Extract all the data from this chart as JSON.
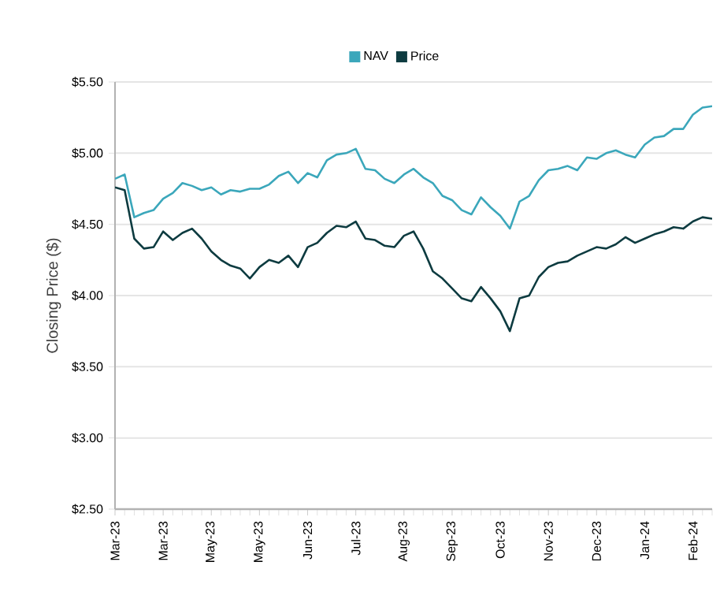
{
  "chart_data": {
    "type": "line",
    "ylabel": "Closing Price ($)",
    "categories": [
      "Mar-23",
      null,
      null,
      null,
      null,
      "Mar-23",
      null,
      null,
      null,
      null,
      "May-23",
      null,
      null,
      null,
      null,
      "May-23",
      null,
      null,
      null,
      null,
      "Jun-23",
      null,
      null,
      null,
      null,
      "Jul-23",
      null,
      null,
      null,
      null,
      "Aug-23",
      null,
      null,
      null,
      null,
      "Sep-23",
      null,
      null,
      null,
      null,
      "Oct-23",
      null,
      null,
      null,
      null,
      "Nov-23",
      null,
      null,
      null,
      null,
      "Dec-23",
      null,
      null,
      null,
      null,
      "Jan-24",
      null,
      null,
      null,
      null,
      "Feb-24",
      null,
      null
    ],
    "series": [
      {
        "name": "NAV",
        "color": "#3ba7bb",
        "values": [
          4.82,
          4.85,
          4.55,
          4.58,
          4.6,
          4.68,
          4.72,
          4.79,
          4.77,
          4.74,
          4.76,
          4.71,
          4.74,
          4.73,
          4.75,
          4.75,
          4.78,
          4.84,
          4.87,
          4.79,
          4.86,
          4.83,
          4.95,
          4.99,
          5.0,
          5.03,
          4.89,
          4.88,
          4.82,
          4.79,
          4.85,
          4.89,
          4.83,
          4.79,
          4.7,
          4.67,
          4.6,
          4.57,
          4.69,
          4.62,
          4.56,
          4.47,
          4.66,
          4.7,
          4.81,
          4.88,
          4.89,
          4.91,
          4.88,
          4.97,
          4.96,
          5.0,
          5.02,
          4.99,
          4.97,
          5.06,
          5.11,
          5.12,
          5.17,
          5.17,
          5.27,
          5.32,
          5.33
        ]
      },
      {
        "name": "Price",
        "color": "#0d3b40",
        "values": [
          4.76,
          4.74,
          4.4,
          4.33,
          4.34,
          4.45,
          4.39,
          4.44,
          4.47,
          4.4,
          4.31,
          4.25,
          4.21,
          4.19,
          4.12,
          4.2,
          4.25,
          4.23,
          4.28,
          4.2,
          4.34,
          4.37,
          4.44,
          4.49,
          4.48,
          4.52,
          4.4,
          4.39,
          4.35,
          4.34,
          4.42,
          4.45,
          4.33,
          4.17,
          4.12,
          4.05,
          3.98,
          3.96,
          4.06,
          3.98,
          3.89,
          3.75,
          3.98,
          4.0,
          4.13,
          4.2,
          4.23,
          4.24,
          4.28,
          4.31,
          4.34,
          4.33,
          4.36,
          4.41,
          4.37,
          4.4,
          4.43,
          4.45,
          4.48,
          4.47,
          4.52,
          4.55,
          4.54
        ]
      }
    ],
    "ylim": [
      2.5,
      5.5
    ],
    "yticks": [
      {
        "value": 2.5,
        "label": "$2.50"
      },
      {
        "value": 3.0,
        "label": "$3.00"
      },
      {
        "value": 3.5,
        "label": "$3.50"
      },
      {
        "value": 4.0,
        "label": "$4.00"
      },
      {
        "value": 4.5,
        "label": "$4.50"
      },
      {
        "value": 5.0,
        "label": "$5.00"
      },
      {
        "value": 5.5,
        "label": "$5.50"
      }
    ],
    "grid": "y",
    "legend": "top",
    "marker": "none",
    "line_style": "solid"
  }
}
